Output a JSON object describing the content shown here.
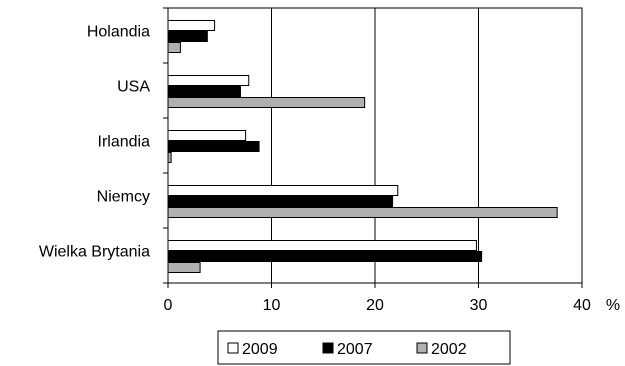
{
  "chart_data": {
    "type": "bar",
    "orientation": "horizontal",
    "categories": [
      "Holandia",
      "USA",
      "Irlandia",
      "Niemcy",
      "Wielka Brytania"
    ],
    "series": [
      {
        "name": "2009",
        "color": "#ffffff",
        "values": [
          4.5,
          7.8,
          7.5,
          22.2,
          29.8
        ]
      },
      {
        "name": "2007",
        "color": "#000000",
        "values": [
          3.8,
          7.0,
          8.8,
          21.7,
          30.3
        ]
      },
      {
        "name": "2002",
        "color": "#b0b0b0",
        "values": [
          1.2,
          19.0,
          0.3,
          37.6,
          3.1
        ]
      }
    ],
    "xlim": [
      0,
      40
    ],
    "xticks": [
      0,
      10,
      20,
      30,
      40
    ],
    "x_unit": "%",
    "grid": "vertical",
    "legend_position": "bottom"
  }
}
